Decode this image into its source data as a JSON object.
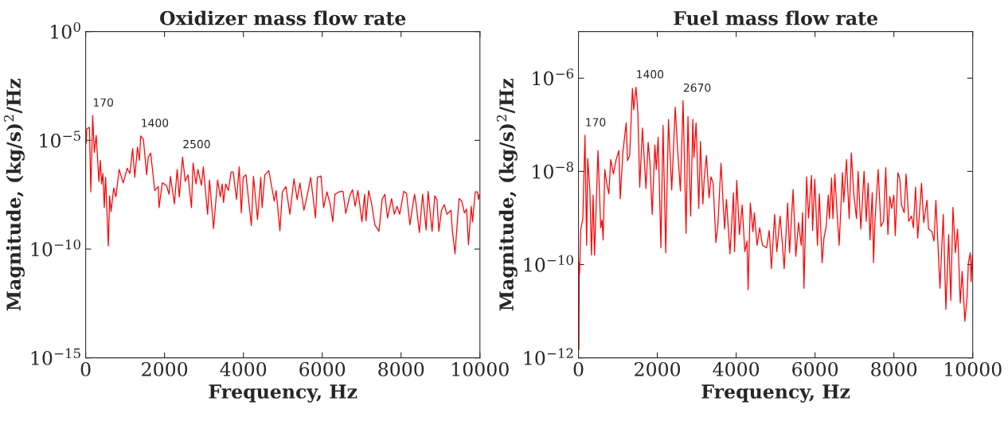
{
  "chart_data": [
    {
      "type": "line",
      "title": "Oxidizer mass flow rate",
      "xlabel": "Frequency, Hz",
      "ylabel": "Magnitude, (kg/s)$^{2}$/Hz",
      "log": "y",
      "grid": false,
      "legend": false,
      "xlim": [
        0,
        10000
      ],
      "xticks": [
        0,
        2000,
        4000,
        6000,
        8000,
        10000
      ],
      "ylim": [
        1e-15,
        1
      ],
      "yticks": [
        {
          "value": 1e-15,
          "label": "10$^{−15}$"
        },
        {
          "value": 1e-10,
          "label": "10$^{−10}$"
        },
        {
          "value": 1e-05,
          "label": "10$^{−5}$"
        },
        {
          "value": 1,
          "label": "10$^{0}$"
        }
      ],
      "annotations": [
        {
          "text": "170",
          "x": 178,
          "y": 0.00014
        },
        {
          "text": "1400",
          "x": 1396,
          "y": 1.6e-05
        },
        {
          "text": "2500",
          "x": 2457,
          "y": 1.7e-06
        }
      ],
      "series": [
        {
          "color": "#ff0000",
          "x": [
            14,
            27,
            96,
            130,
            178,
            219,
            267,
            335,
            370,
            404,
            438,
            472,
            506,
            575,
            609,
            643,
            712,
            766,
            849,
            951,
            1054,
            1122,
            1191,
            1246,
            1314,
            1362,
            1396,
            1464,
            1547,
            1588,
            1649,
            1752,
            1841,
            1861,
            1943,
            2046,
            2115,
            2149,
            2251,
            2320,
            2375,
            2457,
            2525,
            2594,
            2683,
            2724,
            2799,
            2847,
            2936,
            2984,
            3093,
            3141,
            3244,
            3346,
            3415,
            3463,
            3497,
            3552,
            3620,
            3688,
            3743,
            3825,
            3894,
            3948,
            3996,
            4065,
            4202,
            4256,
            4359,
            4441,
            4475,
            4544,
            4647,
            4783,
            4831,
            4927,
            4989,
            5078,
            5180,
            5283,
            5365,
            5433,
            5536,
            5625,
            5707,
            5830,
            5878,
            5967,
            6036,
            6118,
            6200,
            6268,
            6323,
            6426,
            6528,
            6597,
            6699,
            6768,
            6836,
            6905,
            7007,
            7076,
            7110,
            7178,
            7247,
            7336,
            7439,
            7521,
            7589,
            7657,
            7760,
            7829,
            7897,
            7965,
            8068,
            8136,
            8225,
            8273,
            8342,
            8376,
            8465,
            8547,
            8636,
            8684,
            8787,
            8855,
            8910,
            8958,
            9026,
            9095,
            9163,
            9266,
            9300,
            9368,
            9471,
            9539,
            9608,
            9662,
            9710,
            9779,
            9813,
            9881,
            9936,
            9963,
            9984
          ],
          "values": [
            7.4e-06,
            3.4e-05,
            3.9e-05,
            4.3e-08,
            0.00014,
            2.8e-06,
            1.7e-05,
            1.3e-07,
            1.2e-06,
            9.9e-08,
            3e-07,
            8.1e-09,
            2e-07,
            1.4e-10,
            2.8e-08,
            5.3e-09,
            6.5e-08,
            2.5e-08,
            4.6e-07,
            1.1e-07,
            5.2e-07,
            3e-07,
            4.2e-06,
            2e-07,
            4.9e-06,
            1.2e-06,
            1.6e-05,
            1.1e-05,
            2.6e-07,
            1.7e-06,
            2.6e-06,
            4.9e-08,
            7.5e-08,
            8.1e-09,
            1.1e-07,
            8.6e-08,
            3.3e-08,
            2.2e-07,
            1.2e-08,
            4.6e-07,
            2.5e-08,
            1.7e-06,
            1.3e-07,
            2.6e-07,
            8.1e-09,
            9.1e-07,
            9.9e-08,
            4.6e-07,
            8.6e-08,
            6e-07,
            4e-09,
            1.5e-07,
            8.7e-10,
            1.5e-07,
            2.5e-08,
            9.9e-08,
            1.4e-08,
            9.9e-08,
            4.9e-08,
            3.5e-07,
            3.5e-07,
            1.9e-08,
            6e-07,
            4.6e-09,
            2e-07,
            2.6e-07,
            1.2e-09,
            2.2e-07,
            2.3e-09,
            2e-07,
            8.1e-09,
            2.6e-07,
            4e-07,
            1.6e-08,
            4.9e-08,
            7e-10,
            4.3e-08,
            7.5e-08,
            4e-09,
            1.7e-07,
            1.9e-08,
            1.1e-07,
            6.1e-09,
            3.3e-08,
            2e-07,
            2.7e-09,
            2e-07,
            2.3e-07,
            8.1e-09,
            4.3e-08,
            1.2e-08,
            1.8e-09,
            3.3e-08,
            4.3e-08,
            4.5e-08,
            4.4e-09,
            2.8e-08,
            5.4e-08,
            9.3e-09,
            4.9e-08,
            1.8e-09,
            3.3e-08,
            2e-09,
            4.9e-08,
            1.4e-08,
            1.3e-09,
            6.6e-10,
            2e-08,
            3.3e-08,
            2.7e-09,
            2.1e-08,
            4e-09,
            9.3e-09,
            4e-09,
            4.5e-08,
            3.7e-08,
            1.3e-09,
            5.3e-09,
            3.3e-08,
            1.4e-08,
            5.8e-10,
            3.3e-08,
            7.6e-10,
            4.5e-08,
            6.6e-10,
            2.8e-08,
            1.9e-08,
            6.6e-10,
            6.1e-09,
            1.1e-08,
            4e-09,
            6.1e-09,
            7.6e-10,
            6.2e-11,
            2.1e-08,
            1.6e-08,
            4.6e-09,
            7e-09,
            1.6e-10,
            9.3e-09,
            1.8e-09,
            4.3e-08,
            4.3e-08,
            1.9e-08,
            3.3e-08
          ]
        }
      ]
    },
    {
      "type": "line",
      "title": "Fuel mass flow rate",
      "xlabel": "Frequency, Hz",
      "ylabel": "Magnitude, (kg/s)$^{2}$/Hz",
      "log": "y",
      "grid": false,
      "legend": false,
      "xlim": [
        0,
        10000
      ],
      "xticks": [
        0,
        2000,
        4000,
        6000,
        8000,
        10000
      ],
      "ylim": [
        1e-12,
        1e-05
      ],
      "yticks": [
        {
          "value": 1e-12,
          "label": "10$^{−12}$"
        },
        {
          "value": 1e-10,
          "label": "10$^{−10}$"
        },
        {
          "value": 1e-08,
          "label": "10$^{−8}$"
        },
        {
          "value": 1e-06,
          "label": "10$^{−6}$"
        }
      ],
      "annotations": [
        {
          "text": "170",
          "x": 165,
          "y": 6e-08
        },
        {
          "text": "1400",
          "x": 1457,
          "y": 6.4e-07
        },
        {
          "text": "2670",
          "x": 2653,
          "y": 3.3e-07
        }
      ],
      "series": [
        {
          "color": "#ff0000",
          "x": [
            12,
            20,
            28,
            55,
            110,
            165,
            206,
            234,
            289,
            330,
            371,
            406,
            495,
            564,
            598,
            626,
            667,
            715,
            770,
            818,
            887,
            956,
            1024,
            1059,
            1127,
            1210,
            1244,
            1299,
            1368,
            1402,
            1457,
            1505,
            1554,
            1622,
            1712,
            1767,
            1815,
            1870,
            1938,
            1973,
            2021,
            2090,
            2145,
            2213,
            2282,
            2365,
            2454,
            2516,
            2585,
            2653,
            2729,
            2777,
            2846,
            2901,
            2928,
            2983,
            3052,
            3093,
            3155,
            3189,
            3244,
            3313,
            3361,
            3416,
            3485,
            3533,
            3615,
            3705,
            3753,
            3842,
            3932,
            3959,
            4014,
            4083,
            4152,
            4220,
            4275,
            4303,
            4358,
            4426,
            4461,
            4530,
            4598,
            4667,
            4770,
            4839,
            4894,
            4976,
            5031,
            5114,
            5169,
            5217,
            5306,
            5354,
            5444,
            5513,
            5581,
            5650,
            5684,
            5719,
            5787,
            5835,
            5911,
            5938,
            5994,
            6062,
            6110,
            6179,
            6227,
            6282,
            6337,
            6365,
            6420,
            6454,
            6502,
            6557,
            6612,
            6695,
            6729,
            6798,
            6866,
            6921,
            6983,
            7052,
            7093,
            7162,
            7244,
            7299,
            7347,
            7395,
            7451,
            7485,
            7519,
            7602,
            7671,
            7739,
            7794,
            7849,
            7897,
            7945,
            8000,
            8035,
            8104,
            8152,
            8193,
            8262,
            8310,
            8378,
            8447,
            8495,
            8550,
            8605,
            8702,
            8757,
            8839,
            8880,
            8963,
            9018,
            9066,
            9169,
            9252,
            9320,
            9389,
            9444,
            9499,
            9561,
            9616,
            9684,
            9733,
            9801,
            9856,
            9890,
            9938,
            9959,
            9990,
            10000
          ],
          "values": [
            1.5e-12,
            1.1e-10,
            6.4e-11,
            5.4e-10,
            9.7e-10,
            6e-08,
            2.6e-10,
            1.9e-08,
            4e-09,
            1.6e-10,
            3.1e-09,
            1.6e-10,
            2.8e-08,
            6.2e-10,
            9.1e-10,
            3.4e-10,
            1.1e-08,
            5.6e-09,
            3.3e-09,
            1.8e-08,
            8.8e-09,
            1.8e-08,
            2.8e-08,
            2.6e-09,
            2.6e-08,
            1.1e-07,
            1.7e-08,
            2.2e-08,
            6e-07,
            2.1e-07,
            6.4e-07,
            2e-07,
            4.6e-09,
            8.5e-08,
            4.3e-09,
            4.2e-08,
            1.4e-08,
            1.2e-09,
            3.7e-08,
            1.1e-08,
            5.4e-08,
            2.3e-10,
            9.7e-08,
            1.8e-10,
            1.3e-07,
            4e-09,
            2.4e-07,
            2.8e-08,
            3.8e-09,
            3.3e-07,
            4.7e-10,
            1.5e-07,
            1.1e-09,
            1.3e-07,
            2e-08,
            1.1e-07,
            1.6e-09,
            4.4e-08,
            2e-09,
            6.8e-09,
            2.2e-08,
            2.7e-09,
            7.7e-09,
            5.6e-09,
            3e-10,
            6.6e-10,
            1.5e-08,
            5.8e-10,
            2.5e-09,
            1.7e-10,
            3.5e-09,
            1.9e-10,
            6.4e-09,
            4.4e-10,
            1.9e-09,
            1.9e-10,
            3.2e-10,
            2.9e-11,
            2.1e-09,
            5.1e-10,
            1.3e-09,
            2.6e-10,
            6.2e-10,
            2.6e-10,
            2.3e-10,
            5.4e-10,
            8.2e-11,
            1.2e-09,
            1.9e-10,
            1.1e-09,
            3e-10,
            8.2e-11,
            2.1e-09,
            1.8e-10,
            4.1e-09,
            1.5e-10,
            8e-10,
            2.6e-10,
            1.3e-09,
            3.1e-11,
            7.7e-09,
            1e-09,
            8.2e-09,
            5.4e-10,
            6.8e-09,
            2.6e-10,
            3.3e-09,
            1.1e-10,
            3.7e-10,
            6.6e-10,
            3.1e-09,
            9.7e-10,
            7.2e-09,
            9.7e-10,
            8.8e-09,
            1.4e-09,
            2.6e-10,
            9.4e-09,
            2.2e-09,
            1.8e-08,
            9.7e-10,
            2.5e-08,
            3.3e-09,
            9.7e-10,
            1e-08,
            5.8e-10,
            1e-08,
            8.5e-10,
            5.6e-09,
            3.4e-10,
            3.5e-09,
            1.1e-10,
            8.5e-10,
            1.1e-08,
            6.6e-10,
            8.5e-10,
            1.2e-08,
            4.4e-10,
            2.9e-09,
            1.6e-09,
            3.1e-09,
            4.2e-10,
            9.4e-09,
            6.8e-09,
            1.9e-09,
            1.3e-09,
            8.8e-09,
            8.5e-10,
            1.1e-09,
            6.2e-10,
            4.6e-09,
            3.7e-10,
            5.6e-09,
            8e-10,
            2.4e-09,
            5.8e-10,
            5.1e-10,
            3.2e-10,
            2.4e-09,
            3.1e-11,
            1.2e-09,
            1.1e-11,
            4.4e-10,
            1.7e-11,
            1.7e-09,
            1.8e-10,
            5.8e-10,
            1.5e-11,
            7.2e-11,
            6.1e-12,
            2e-11,
            1.1e-10,
            1.8e-10,
            4.3e-11,
            1.6e-10,
            7.2e-11
          ]
        }
      ]
    }
  ]
}
